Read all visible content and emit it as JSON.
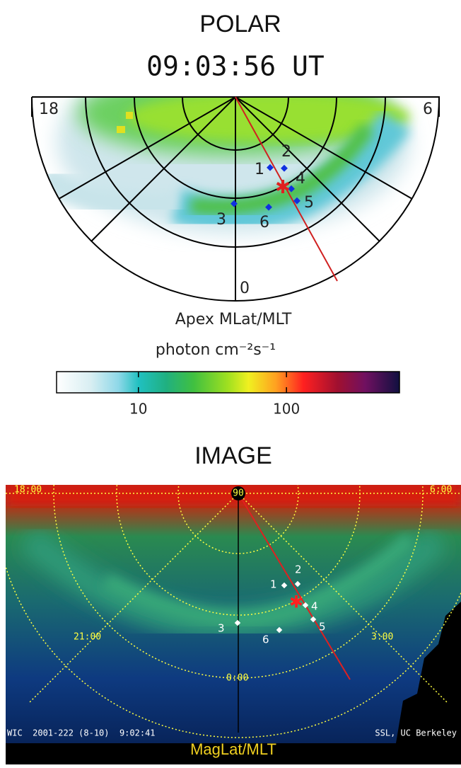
{
  "polar": {
    "title": "POLAR",
    "time": "09:03:56 UT",
    "mlt_labels": [
      "18",
      "6",
      "0"
    ],
    "point_labels": [
      "1",
      "2",
      "3",
      "4",
      "5",
      "6"
    ],
    "coordinate_label": "Apex MLat/MLT",
    "units": "photon cm⁻²s⁻¹",
    "colorbar": {
      "range": [
        2.8,
        580
      ],
      "ticks": [
        10,
        100
      ],
      "log_scale": true
    }
  },
  "image": {
    "title": "IMAGE",
    "mlt_labels": [
      "18:00",
      "6:00",
      "21:00",
      "3:00",
      "0:00"
    ],
    "pole_label": "90",
    "point_labels": [
      "1",
      "2",
      "3",
      "4",
      "5",
      "6"
    ],
    "footer": "WIC  2001-222 (8-10)  9:02:41",
    "credit": "SSL, UC Berkeley",
    "coordinate_label": "MagLat/MLT"
  }
}
